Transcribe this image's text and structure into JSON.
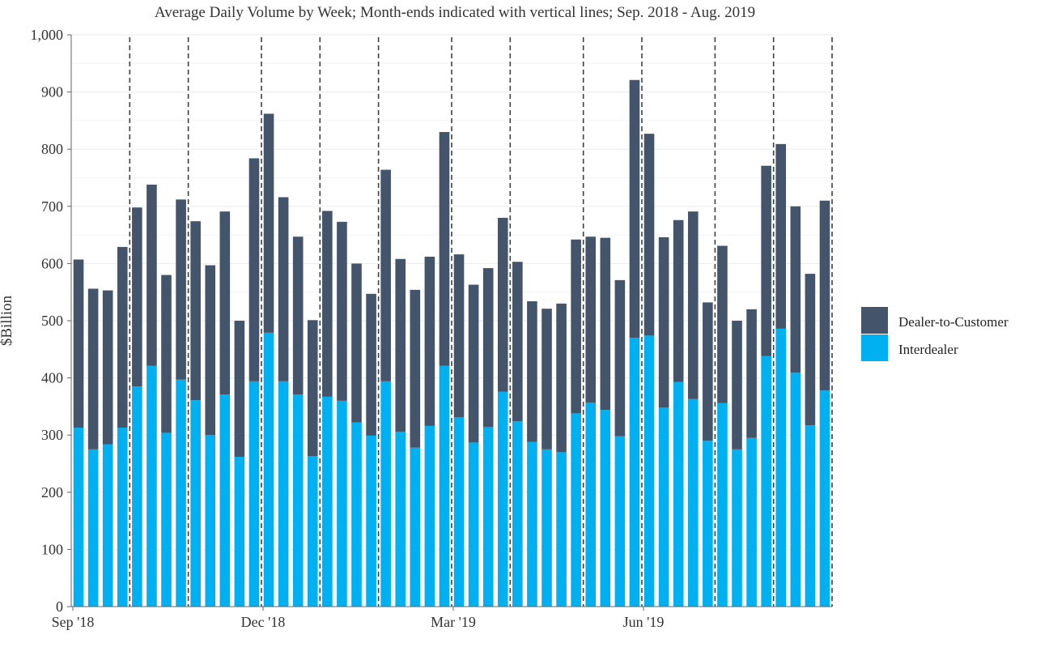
{
  "chart_data": {
    "type": "bar",
    "stacked": true,
    "title": "Average Daily Volume by Week; Month-ends indicated with vertical lines; Sep. 2018 - Aug. 2019",
    "xlabel": "",
    "ylabel": "$Billion",
    "ylim": [
      0,
      1000
    ],
    "yticks": [
      0,
      100,
      200,
      300,
      400,
      500,
      600,
      700,
      800,
      900,
      1000
    ],
    "ytick_labels": [
      "0",
      "100",
      "200",
      "300",
      "400",
      "500",
      "600",
      "700",
      "800",
      "900",
      "1,000"
    ],
    "x_tick_labels": [
      {
        "index": 0,
        "label": "Sep '18"
      },
      {
        "index": 13,
        "label": "Dec '18"
      },
      {
        "index": 26,
        "label": "Mar '19"
      },
      {
        "index": 39,
        "label": "Jun '19"
      }
    ],
    "month_end_lines_after_week": [
      3.5,
      7.5,
      12.5,
      16.5,
      20.5,
      25.5,
      29.5,
      34.5,
      38.5,
      43.5,
      47.5,
      51.5
    ],
    "grid": true,
    "legend_position": "right",
    "series": [
      {
        "name": "Interdealer",
        "color": "#00b0f0",
        "values": [
          313,
          275,
          284,
          313,
          385,
          421,
          304,
          397,
          361,
          300,
          371,
          262,
          394,
          479,
          394,
          371,
          263,
          367,
          360,
          322,
          299,
          394,
          306,
          278,
          316,
          421,
          331,
          287,
          314,
          376,
          324,
          288,
          275,
          270,
          338,
          357,
          344,
          298,
          470,
          474,
          348,
          393,
          363,
          290,
          356,
          275,
          295,
          438,
          486,
          409,
          317,
          378
        ]
      },
      {
        "name": "Dealer-to-Customer",
        "color": "#44546a",
        "values": [
          294,
          281,
          269,
          316,
          313,
          317,
          276,
          315,
          313,
          297,
          320,
          238,
          390,
          383,
          322,
          276,
          238,
          325,
          313,
          278,
          248,
          370,
          302,
          276,
          296,
          409,
          285,
          276,
          278,
          304,
          279,
          246,
          246,
          260,
          304,
          290,
          301,
          273,
          451,
          353,
          298,
          283,
          328,
          242,
          275,
          225,
          225,
          333,
          323,
          291,
          265,
          332
        ]
      }
    ]
  }
}
